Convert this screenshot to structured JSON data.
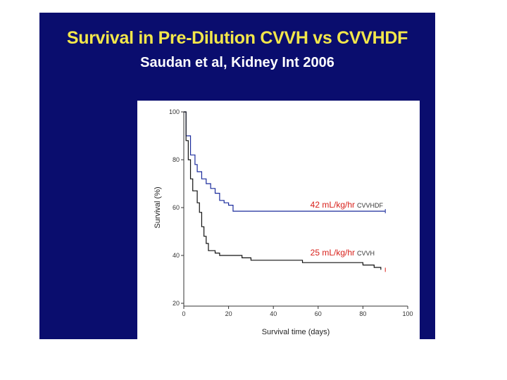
{
  "slide": {
    "title": "Survival in Pre-Dilution CVVH vs CVVHDF",
    "subtitle": "Saudan et al, Kidney Int 2006"
  },
  "colors": {
    "slide_bg": "#0a0d6e",
    "title": "#f2e64a",
    "series_label": "#d8201a",
    "cvvhdf_line": "#1a2b9c",
    "cvvh_line": "#111111"
  },
  "chart_data": {
    "type": "line",
    "title": "",
    "xlabel": "Survival time (days)",
    "ylabel": "Survival (%)",
    "xlim": [
      0,
      100
    ],
    "ylim": [
      20,
      100
    ],
    "xticks": [
      0,
      20,
      40,
      60,
      80,
      100
    ],
    "yticks": [
      20,
      40,
      60,
      80,
      100
    ],
    "grid": false,
    "series": [
      {
        "name": "CVVHDF",
        "dose_label": "42 mL/kg/hr",
        "tag": "CVVHDF",
        "color": "#1a2b9c",
        "censor_x": 90,
        "points": [
          [
            0,
            100
          ],
          [
            1,
            90
          ],
          [
            3,
            82
          ],
          [
            5,
            78
          ],
          [
            6,
            75
          ],
          [
            8,
            72
          ],
          [
            10,
            70
          ],
          [
            12,
            68
          ],
          [
            14,
            66
          ],
          [
            16,
            63
          ],
          [
            18,
            62
          ],
          [
            20,
            61
          ],
          [
            22,
            58.5
          ],
          [
            90,
            58.5
          ]
        ]
      },
      {
        "name": "CVVH",
        "dose_label": "25 mL/kg/hr",
        "tag": "CVVH",
        "color": "#111111",
        "censor_x": 90,
        "points": [
          [
            0,
            100
          ],
          [
            1,
            88
          ],
          [
            2,
            80
          ],
          [
            3,
            72
          ],
          [
            4,
            67
          ],
          [
            6,
            62
          ],
          [
            7,
            58
          ],
          [
            8,
            52
          ],
          [
            9,
            48
          ],
          [
            10,
            45
          ],
          [
            11,
            42
          ],
          [
            14,
            41
          ],
          [
            16,
            40
          ],
          [
            24,
            40
          ],
          [
            26,
            39
          ],
          [
            30,
            38
          ],
          [
            35,
            38
          ],
          [
            50,
            38
          ],
          [
            53,
            37
          ],
          [
            70,
            37
          ],
          [
            80,
            36
          ],
          [
            85,
            35
          ],
          [
            88,
            34
          ]
        ]
      }
    ]
  }
}
